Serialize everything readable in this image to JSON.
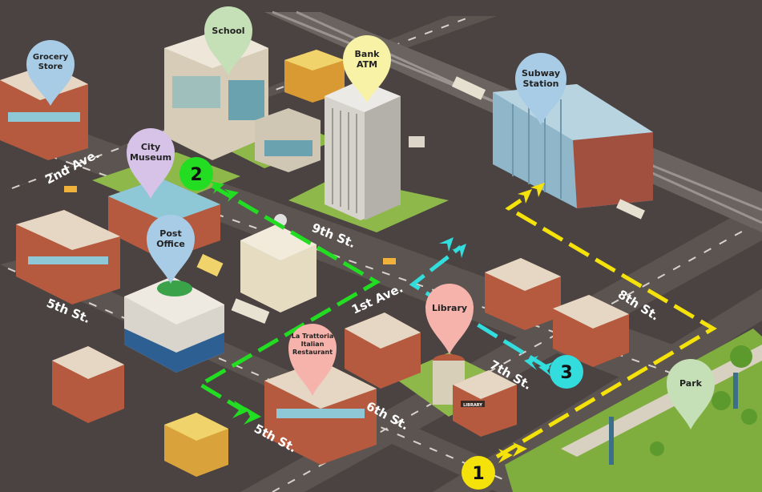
{
  "colors": {
    "background": "#4a4342",
    "road": "#5a5350",
    "lawn": "#8fb84a",
    "route_1": "#f5e20a",
    "route_2": "#22dd22",
    "route_3": "#33dddd",
    "pin_blue": "#a8cce6",
    "pin_green": "#c5dfb6",
    "pin_yellow": "#f8f2a6",
    "pin_purple": "#d7c3e8",
    "pin_pink": "#f6b3ab"
  },
  "pins": {
    "grocery": {
      "label_line1": "Grocery",
      "label_line2": "Store",
      "color": "#a8cce6"
    },
    "school": {
      "label_line1": "School",
      "color": "#c5dfb6"
    },
    "bank": {
      "label_line1": "Bank",
      "label_line2": "ATM",
      "color": "#f8f2a6"
    },
    "subway": {
      "label_line1": "Subway",
      "label_line2": "Station",
      "color": "#a8cce6"
    },
    "museum": {
      "label_line1": "City",
      "label_line2": "Museum",
      "color": "#d7c3e8"
    },
    "post_office": {
      "label_line1": "Post",
      "label_line2": "Office",
      "color": "#a8cce6"
    },
    "library": {
      "label_line1": "Library",
      "color": "#f6b3ab"
    },
    "restaurant": {
      "label_line1": "La Trattoria",
      "label_line2": "Italian",
      "label_line3": "Restaurant",
      "color": "#f6b3ab"
    },
    "park": {
      "label_line1": "Park",
      "color": "#c5dfb6"
    }
  },
  "streets": {
    "second_ave": "2nd Ave.",
    "ninth_st": "9th St.",
    "fifth_st_west": "5th St.",
    "first_ave": "1st Ave.",
    "eighth_st": "8th St.",
    "seventh_st": "7th St.",
    "sixth_st": "6th St.",
    "fifth_st_south": "5th St."
  },
  "route_markers": {
    "one": "1",
    "two": "2",
    "three": "3"
  },
  "signs": {
    "library_sign": "LIBRARY"
  }
}
